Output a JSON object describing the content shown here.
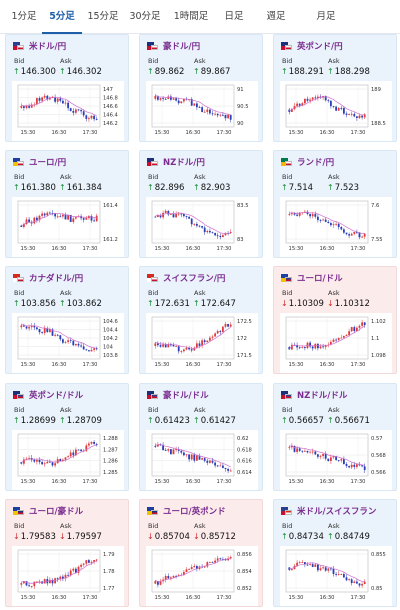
{
  "tabs": [
    {
      "label": "1分足",
      "active": false
    },
    {
      "label": "5分足",
      "active": true
    },
    {
      "label": "15分足",
      "active": false
    },
    {
      "label": "30分足",
      "active": false
    },
    {
      "label": "1時間足",
      "active": false
    },
    {
      "label": "日足",
      "active": false
    },
    {
      "label": "週足",
      "active": false
    },
    {
      "label": "月足",
      "active": false
    }
  ],
  "labels": {
    "bid": "Bid",
    "ask": "Ask"
  },
  "colors": {
    "up_arrow": "#1e8c3a",
    "down_arrow": "#d12a2a",
    "candle_up": "#e23b3b",
    "candle_down": "#2a3fb8",
    "ma_line": "#cf6fcf",
    "title": "#7a2c8f",
    "tab_active": "#1f5fa8"
  },
  "pairs": [
    {
      "name": "米ドル/円",
      "bid": "146.300",
      "ask": "146.302",
      "direction": "up",
      "flag": "us-jp",
      "yticks": [
        "147",
        "146.8",
        "146.6",
        "146.4",
        "146.2"
      ],
      "xticks": [
        "15:30",
        "16:30",
        "17:30"
      ],
      "trend": [
        0.55,
        0.5,
        0.42,
        0.3,
        0.28,
        0.35,
        0.3,
        0.45,
        0.5,
        0.62,
        0.7,
        0.78,
        0.85,
        0.82
      ]
    },
    {
      "name": "豪ドル/円",
      "bid": "89.862",
      "ask": "89.867",
      "direction": "up",
      "flag": "au-jp",
      "yticks": [
        "91",
        "90.5",
        "90"
      ],
      "xticks": [
        "15:30",
        "16:30",
        "17:30"
      ],
      "trend": [
        0.3,
        0.32,
        0.25,
        0.3,
        0.35,
        0.32,
        0.4,
        0.5,
        0.6,
        0.68,
        0.75,
        0.8,
        0.82,
        0.8
      ]
    },
    {
      "name": "英ポンド/円",
      "bid": "188.291",
      "ask": "188.298",
      "direction": "up",
      "flag": "gb-jp",
      "yticks": [
        "189",
        "188.5"
      ],
      "xticks": [
        "15:30",
        "16:30",
        "17:30"
      ],
      "trend": [
        0.6,
        0.55,
        0.4,
        0.3,
        0.22,
        0.2,
        0.3,
        0.42,
        0.55,
        0.62,
        0.72,
        0.8,
        0.82,
        0.8
      ]
    },
    {
      "name": "ユーロ/円",
      "bid": "161.380",
      "ask": "161.384",
      "direction": "up",
      "flag": "eu-jp",
      "yticks": [
        "161.4",
        "161.2"
      ],
      "xticks": [
        "15:30",
        "16:30",
        "17:30"
      ],
      "trend": [
        0.6,
        0.5,
        0.45,
        0.35,
        0.3,
        0.32,
        0.4,
        0.35,
        0.38,
        0.45,
        0.4,
        0.35,
        0.42,
        0.38
      ]
    },
    {
      "name": "NZドル/円",
      "bid": "82.896",
      "ask": "82.903",
      "direction": "up",
      "flag": "nz-jp",
      "yticks": [
        "83.5",
        "83"
      ],
      "xticks": [
        "15:30",
        "16:30",
        "17:30"
      ],
      "trend": [
        0.35,
        0.3,
        0.25,
        0.3,
        0.28,
        0.35,
        0.45,
        0.6,
        0.72,
        0.78,
        0.82,
        0.85,
        0.84,
        0.82
      ]
    },
    {
      "name": "ランド/円",
      "bid": "7.514",
      "ask": "7.523",
      "direction": "up",
      "flag": "za-jp",
      "yticks": [
        "7.6",
        "7.55"
      ],
      "xticks": [
        "15:30",
        "16:30",
        "17:30"
      ],
      "trend": [
        0.3,
        0.25,
        0.3,
        0.28,
        0.32,
        0.4,
        0.45,
        0.55,
        0.6,
        0.72,
        0.8,
        0.82,
        0.86,
        0.85
      ]
    },
    {
      "name": "カナダドル/円",
      "bid": "103.856",
      "ask": "103.862",
      "direction": "up",
      "flag": "ca-jp",
      "yticks": [
        "104.6",
        "104.4",
        "104.2",
        "104",
        "103.8"
      ],
      "xticks": [
        "15:30",
        "16:30",
        "17:30"
      ],
      "trend": [
        0.2,
        0.22,
        0.18,
        0.25,
        0.3,
        0.32,
        0.42,
        0.55,
        0.6,
        0.7,
        0.78,
        0.85,
        0.84,
        0.82
      ]
    },
    {
      "name": "スイスフラン/円",
      "bid": "172.631",
      "ask": "172.647",
      "direction": "up",
      "flag": "ch-jp",
      "yticks": [
        "172.5",
        "172",
        "171.5"
      ],
      "xticks": [
        "15:30",
        "16:30",
        "17:30"
      ],
      "trend": [
        0.72,
        0.75,
        0.78,
        0.72,
        0.8,
        0.82,
        0.78,
        0.72,
        0.6,
        0.55,
        0.45,
        0.32,
        0.2,
        0.12
      ]
    },
    {
      "name": "ユーロ/ドル",
      "bid": "1.10309",
      "ask": "1.10312",
      "direction": "down",
      "flag": "eu-us",
      "yticks": [
        "1.102",
        "1.1",
        "1.098"
      ],
      "xticks": [
        "15:30",
        "16:30",
        "17:30"
      ],
      "trend": [
        0.75,
        0.72,
        0.78,
        0.7,
        0.75,
        0.72,
        0.7,
        0.62,
        0.58,
        0.45,
        0.35,
        0.25,
        0.15,
        0.12
      ]
    },
    {
      "name": "英ポンド/ドル",
      "bid": "1.28699",
      "ask": "1.28709",
      "direction": "up",
      "flag": "gb-us",
      "yticks": [
        "1.288",
        "1.287",
        "1.286",
        "1.285"
      ],
      "xticks": [
        "15:30",
        "16:30",
        "17:30"
      ],
      "trend": [
        0.7,
        0.65,
        0.6,
        0.68,
        0.72,
        0.75,
        0.65,
        0.6,
        0.55,
        0.45,
        0.4,
        0.3,
        0.2,
        0.18
      ]
    },
    {
      "name": "豪ドル/ドル",
      "bid": "0.61423",
      "ask": "0.61427",
      "direction": "up",
      "flag": "au-us",
      "yticks": [
        "0.62",
        "0.618",
        "0.616",
        "0.614"
      ],
      "xticks": [
        "15:30",
        "16:30",
        "17:30"
      ],
      "trend": [
        0.25,
        0.3,
        0.35,
        0.42,
        0.4,
        0.5,
        0.55,
        0.6,
        0.58,
        0.65,
        0.72,
        0.78,
        0.85,
        0.88
      ]
    },
    {
      "name": "NZドル/ドル",
      "bid": "0.56657",
      "ask": "0.56671",
      "direction": "up",
      "flag": "nz-us",
      "yticks": [
        "0.57",
        "0.568",
        "0.566"
      ],
      "xticks": [
        "15:30",
        "16:30",
        "17:30"
      ],
      "trend": [
        0.3,
        0.35,
        0.32,
        0.4,
        0.45,
        0.48,
        0.55,
        0.6,
        0.62,
        0.7,
        0.75,
        0.78,
        0.82,
        0.85
      ]
    },
    {
      "name": "ユーロ/豪ドル",
      "bid": "1.79583",
      "ask": "1.79597",
      "direction": "down",
      "flag": "eu-au",
      "yticks": [
        "1.79",
        "1.78",
        "1.77"
      ],
      "xticks": [
        "15:30",
        "16:30",
        "17:30"
      ],
      "trend": [
        0.88,
        0.85,
        0.84,
        0.86,
        0.8,
        0.78,
        0.75,
        0.72,
        0.6,
        0.5,
        0.42,
        0.3,
        0.2,
        0.1
      ]
    },
    {
      "name": "ユーロ/英ポンド",
      "bid": "0.85704",
      "ask": "0.85712",
      "direction": "down",
      "flag": "eu-gb",
      "yticks": [
        "0.856",
        "0.854",
        "0.852"
      ],
      "xticks": [
        "15:30",
        "16:30",
        "17:30"
      ],
      "trend": [
        0.85,
        0.75,
        0.7,
        0.62,
        0.55,
        0.5,
        0.48,
        0.4,
        0.35,
        0.3,
        0.25,
        0.2,
        0.22,
        0.18
      ]
    },
    {
      "name": "米ドル/スイスフラン",
      "bid": "0.84734",
      "ask": "0.84749",
      "direction": "up",
      "flag": "us-ch",
      "yticks": [
        "0.855",
        "0.85"
      ],
      "xticks": [
        "15:30",
        "16:30",
        "17:30"
      ],
      "trend": [
        0.4,
        0.35,
        0.3,
        0.38,
        0.35,
        0.4,
        0.42,
        0.5,
        0.55,
        0.62,
        0.7,
        0.78,
        0.82,
        0.85
      ]
    }
  ]
}
